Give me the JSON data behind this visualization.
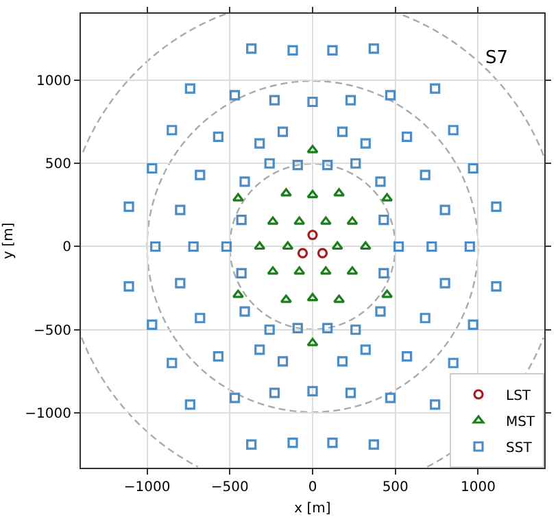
{
  "chart_data": {
    "type": "scatter",
    "xlabel": "x [m]",
    "ylabel": "y [m]",
    "annotations": [
      "S7"
    ],
    "xlim": [
      -1400,
      1400
    ],
    "ylim": [
      -1330,
      1400
    ],
    "xticks": [
      -1000,
      -500,
      0,
      500,
      1000
    ],
    "yticks": [
      -1000,
      -500,
      0,
      500,
      1000
    ],
    "grid": true,
    "legend": "bottom right",
    "series": [
      {
        "name": "LST",
        "color": "#a61c1c",
        "marker": "circle",
        "x": [
          0,
          -60,
          60
        ],
        "values": [
          70,
          -40,
          -40
        ]
      },
      {
        "name": "MST",
        "color": "#1a7f1a",
        "marker": "triangle",
        "x": [
          0,
          0,
          0,
          0,
          160,
          -160,
          160,
          -160,
          450,
          -450,
          450,
          -450,
          80,
          -80,
          80,
          -80,
          240,
          -240,
          240,
          -240,
          150,
          -150,
          320,
          -320
        ],
        "values": [
          580,
          -580,
          310,
          -310,
          320,
          320,
          -320,
          -320,
          290,
          290,
          -290,
          -290,
          150,
          150,
          -150,
          -150,
          150,
          150,
          -150,
          -150,
          0,
          0,
          0,
          0
        ]
      },
      {
        "name": "SST",
        "color": "#4a8cc8",
        "marker": "square",
        "x": [
          120,
          370,
          230,
          470,
          740,
          180,
          320,
          570,
          850,
          90,
          260,
          970,
          410,
          680,
          1110,
          800,
          430,
          -120,
          -370,
          -230,
          -470,
          -740,
          -180,
          -320,
          -570,
          -850,
          -90,
          -260,
          -970,
          -410,
          -680,
          -1110,
          -800,
          -430,
          -120,
          -370,
          -230,
          -470,
          -740,
          -180,
          -320,
          -570,
          -850,
          -90,
          -260,
          -970,
          -410,
          -680,
          -1110,
          -800,
          -430,
          120,
          370,
          230,
          470,
          740,
          180,
          320,
          570,
          850,
          90,
          260,
          970,
          410,
          680,
          1110,
          800,
          430,
          520,
          720,
          950,
          -520,
          -720,
          -950,
          0,
          0
        ],
        "values": [
          1180,
          1190,
          880,
          910,
          950,
          690,
          620,
          660,
          700,
          490,
          500,
          470,
          390,
          430,
          240,
          220,
          160,
          1180,
          1190,
          880,
          910,
          950,
          690,
          620,
          660,
          700,
          490,
          500,
          470,
          390,
          430,
          240,
          220,
          160,
          -1180,
          -1190,
          -880,
          -910,
          -950,
          -690,
          -620,
          -660,
          -700,
          -490,
          -500,
          -470,
          -390,
          -430,
          -240,
          -220,
          -160,
          -1180,
          -1190,
          -880,
          -910,
          -950,
          -690,
          -620,
          -660,
          -700,
          -490,
          -500,
          -470,
          -390,
          -430,
          -240,
          -220,
          -160,
          0,
          0,
          0,
          0,
          0,
          0,
          870,
          -870
        ]
      }
    ]
  }
}
